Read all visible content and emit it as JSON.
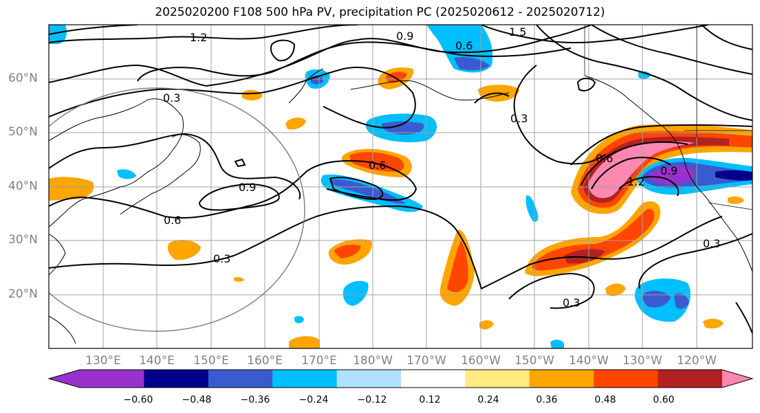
{
  "title": "2025020200 F108 500 hPa PV, precipitation PC (2025020612 - 2025020712)",
  "lat_labels": [
    "60°N",
    "50°N",
    "40°N",
    "30°N",
    "20°N"
  ],
  "lon_labels": [
    "130°E",
    "140°E",
    "150°E",
    "160°E",
    "170°E",
    "180°W",
    "170°W",
    "160°W",
    "150°W",
    "140°W",
    "130°W",
    "120°W"
  ],
  "contour_labels": [
    "1.2",
    "1.5",
    "0.9",
    "0.6",
    "0.3",
    "0.9",
    "0.6",
    "0.3",
    "0.6",
    "0.3",
    "0.6",
    "1.2",
    "0.9",
    "0.3",
    "0.3"
  ],
  "colorbar": {
    "ticks": [
      "−0.60",
      "−0.48",
      "−0.36",
      "−0.24",
      "−0.12",
      "0.12",
      "0.24",
      "0.36",
      "0.48",
      "0.60"
    ],
    "colors": [
      "#9932cc",
      "#00008b",
      "#3a5bd0",
      "#00bfff",
      "#b0e0ff",
      "#ffffff",
      "#ffeb80",
      "#ffa500",
      "#ff4500",
      "#b22222",
      "#ff88b0"
    ]
  }
}
